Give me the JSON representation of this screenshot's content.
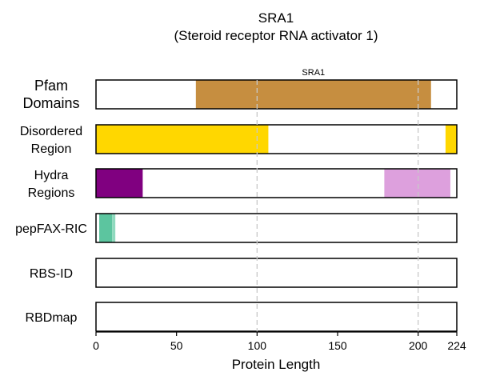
{
  "chart_data": {
    "type": "bar",
    "title": "SRA1",
    "subtitle": "(Steroid receptor RNA activator 1)",
    "xlabel": "Protein Length",
    "xlim": [
      0,
      224
    ],
    "xticks": [
      0,
      50,
      100,
      150,
      200,
      224
    ],
    "gridlines_x": [
      100,
      200
    ],
    "grid": "vertical dashed at 100 and 200",
    "rows": [
      {
        "label": [
          "Pfam",
          "Domains"
        ],
        "segments": [
          {
            "start": 62,
            "end": 208,
            "color": "#C68E40",
            "label": "SRA1"
          }
        ]
      },
      {
        "label": [
          "Disordered",
          "Region"
        ],
        "segments": [
          {
            "start": 0,
            "end": 107,
            "color": "#FFD700"
          },
          {
            "start": 217,
            "end": 224,
            "color": "#FFD700"
          }
        ]
      },
      {
        "label": [
          "Hydra",
          "Regions"
        ],
        "segments": [
          {
            "start": 0,
            "end": 29,
            "color": "#800080"
          },
          {
            "start": 179,
            "end": 220,
            "color": "#DDA0DD"
          }
        ]
      },
      {
        "label": [
          "pepFAX-RIC"
        ],
        "segments": [
          {
            "start": 2,
            "end": 10,
            "color": "#5CC59F"
          },
          {
            "start": 10,
            "end": 12,
            "color": "#8FD9BE"
          }
        ]
      },
      {
        "label": [
          "RBS-ID"
        ],
        "segments": []
      },
      {
        "label": [
          "RBDmap"
        ],
        "segments": []
      }
    ]
  }
}
